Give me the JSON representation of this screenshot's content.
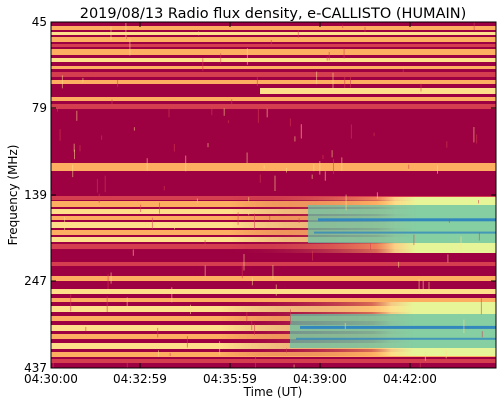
{
  "chart_data": {
    "type": "heatmap",
    "title": "2019/08/13  Radio flux density, e-CALLISTO (HUMAIN)",
    "xlabel": "Time (UT)",
    "ylabel": "Frequency (MHz)",
    "x_ticks": [
      "04:30:00",
      "04:32:59",
      "04:35:59",
      "04:39:00",
      "04:42:00"
    ],
    "y_ticks": [
      "45",
      "79",
      "139",
      "247",
      "437"
    ],
    "x_range": [
      "04:30:00",
      "04:44:40"
    ],
    "y_range": [
      45,
      437
    ],
    "y_scale": "log",
    "y_inverted": true,
    "colormap": "Spectral",
    "colors": {
      "low": "#9e0142",
      "mid_low": "#d53e4f",
      "mid": "#fdae61",
      "mid_high": "#fee08b",
      "high": "#e6f598",
      "higher": "#66c2a5",
      "max": "#3288bd"
    },
    "features": [
      {
        "label": "broadband radio flux increase starting near 04:38 in 160-200 MHz and 300-430 MHz bands"
      }
    ]
  }
}
